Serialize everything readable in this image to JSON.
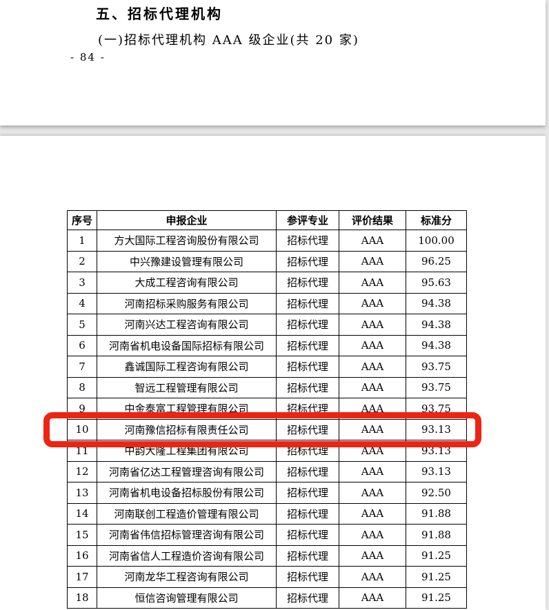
{
  "doc": {
    "heading": "五、招标代理机构",
    "subheading": "(一)招标代理机构 AAA 级企业(共 20 家)",
    "page_number": "- 84 -"
  },
  "table": {
    "columns": [
      "序号",
      "申报企业",
      "参评专业",
      "评价结果",
      "标准分"
    ],
    "rows": [
      [
        "1",
        "方大国际工程咨询股份有限公司",
        "招标代理",
        "AAA",
        "100.00"
      ],
      [
        "2",
        "中兴豫建设管理有限公司",
        "招标代理",
        "AAA",
        "96.25"
      ],
      [
        "3",
        "大成工程咨询有限公司",
        "招标代理",
        "AAA",
        "95.63"
      ],
      [
        "4",
        "河南招标采购服务有限公司",
        "招标代理",
        "AAA",
        "94.38"
      ],
      [
        "5",
        "河南兴达工程咨询有限公司",
        "招标代理",
        "AAA",
        "94.38"
      ],
      [
        "6",
        "河南省机电设备国际招标有限公司",
        "招标代理",
        "AAA",
        "94.38"
      ],
      [
        "7",
        "鑫诚国际工程咨询有限公司",
        "招标代理",
        "AAA",
        "93.75"
      ],
      [
        "8",
        "智远工程管理有限公司",
        "招标代理",
        "AAA",
        "93.75"
      ],
      [
        "9",
        "中金泰富工程管理有限公司",
        "招标代理",
        "AAA",
        "93.75"
      ],
      [
        "10",
        "河南豫信招标有限责任公司",
        "招标代理",
        "AAA",
        "93.13"
      ],
      [
        "11",
        "中韵大隆工程集团有限公司",
        "招标代理",
        "AAA",
        "93.13"
      ],
      [
        "12",
        "河南省亿达工程管理咨询有限公司",
        "招标代理",
        "AAA",
        "93.13"
      ],
      [
        "13",
        "河南省机电设备招标股份有限公司",
        "招标代理",
        "AAA",
        "92.50"
      ],
      [
        "14",
        "河南联创工程造价管理有限公司",
        "招标代理",
        "AAA",
        "91.88"
      ],
      [
        "15",
        "河南省伟信招标管理咨询有限公司",
        "招标代理",
        "AAA",
        "91.88"
      ],
      [
        "16",
        "河南省信人工程造价咨询有限公司",
        "招标代理",
        "AAA",
        "91.25"
      ],
      [
        "17",
        "河南龙华工程咨询有限公司",
        "招标代理",
        "AAA",
        "91.25"
      ],
      [
        "18",
        "恒信咨询管理有限公司",
        "招标代理",
        "AAA",
        "91.25"
      ]
    ],
    "highlighted_row_number": "10",
    "highlight_color": "#ee2413"
  }
}
